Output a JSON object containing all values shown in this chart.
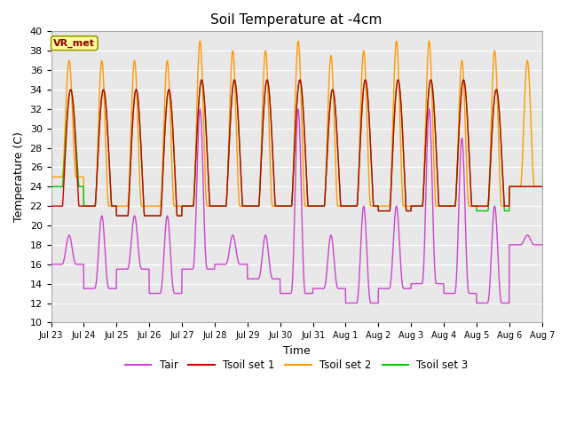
{
  "title": "Soil Temperature at -4cm",
  "xlabel": "Time",
  "ylabel": "Temperature (C)",
  "ylim": [
    10,
    40
  ],
  "yticks": [
    10,
    12,
    14,
    16,
    18,
    20,
    22,
    24,
    26,
    28,
    30,
    32,
    34,
    36,
    38,
    40
  ],
  "colors": {
    "Tair": "#cc44cc",
    "Tsoil_set1": "#cc0000",
    "Tsoil_set2": "#ff9900",
    "Tsoil_set3": "#00cc00"
  },
  "legend_labels": [
    "Tair",
    "Tsoil set 1",
    "Tsoil set 2",
    "Tsoil set 3"
  ],
  "annotation_text": "VR_met",
  "annotation_bg": "#ffff99",
  "annotation_border": "#cc9900",
  "plot_bg": "#e8e8e8",
  "fig_bg": "#ffffff",
  "n_days": 15,
  "pts_per_day": 144,
  "tick_labels": [
    "Jul 23",
    "Jul 24",
    "Jul 25",
    "Jul 26",
    "Jul 27",
    "Jul 28",
    "Jul 29",
    "Jul 30",
    "Jul 31",
    "Aug 1",
    "Aug 2",
    "Aug 3",
    "Aug 4",
    "Aug 5",
    "Aug 6",
    "Aug 7"
  ]
}
